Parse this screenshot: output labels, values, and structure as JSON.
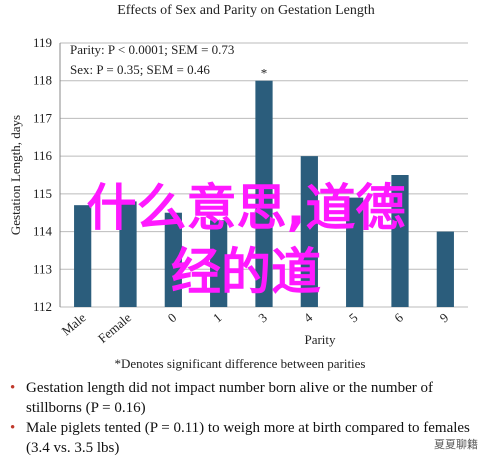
{
  "chart_data": {
    "type": "bar",
    "title": "Effects of Sex and Parity on Gestation Length",
    "y_label": "Gestation Length, days",
    "x_label": "Parity",
    "categories": [
      "Male",
      "Female",
      "0",
      "1",
      "3",
      "4",
      "5",
      "6",
      "9"
    ],
    "values": [
      114.7,
      114.8,
      114.5,
      114.3,
      118,
      116,
      114.9,
      115.5,
      114
    ],
    "color": "#2b5d7c",
    "ylim": [
      112,
      119
    ],
    "yticks": [
      112,
      113,
      114,
      115,
      116,
      117,
      118,
      119
    ],
    "grid": true,
    "annotations": [
      "Parity: P < 0.0001; SEM = 0.73",
      "Sex: P = 0.35; SEM = 0.46"
    ],
    "star": "*",
    "footnote": "*Denotes significant difference between parities"
  },
  "notes": [
    "Gestation length did not impact number born alive or the number of stillborns (P = 0.16)",
    "Male piglets tented (P = 0.11) to weigh more at birth compared to females (3.4 vs. 3.5 lbs)"
  ],
  "overlay": [
    "什么意思,道德",
    "经的道"
  ],
  "watermark": "夏夏聊籍"
}
